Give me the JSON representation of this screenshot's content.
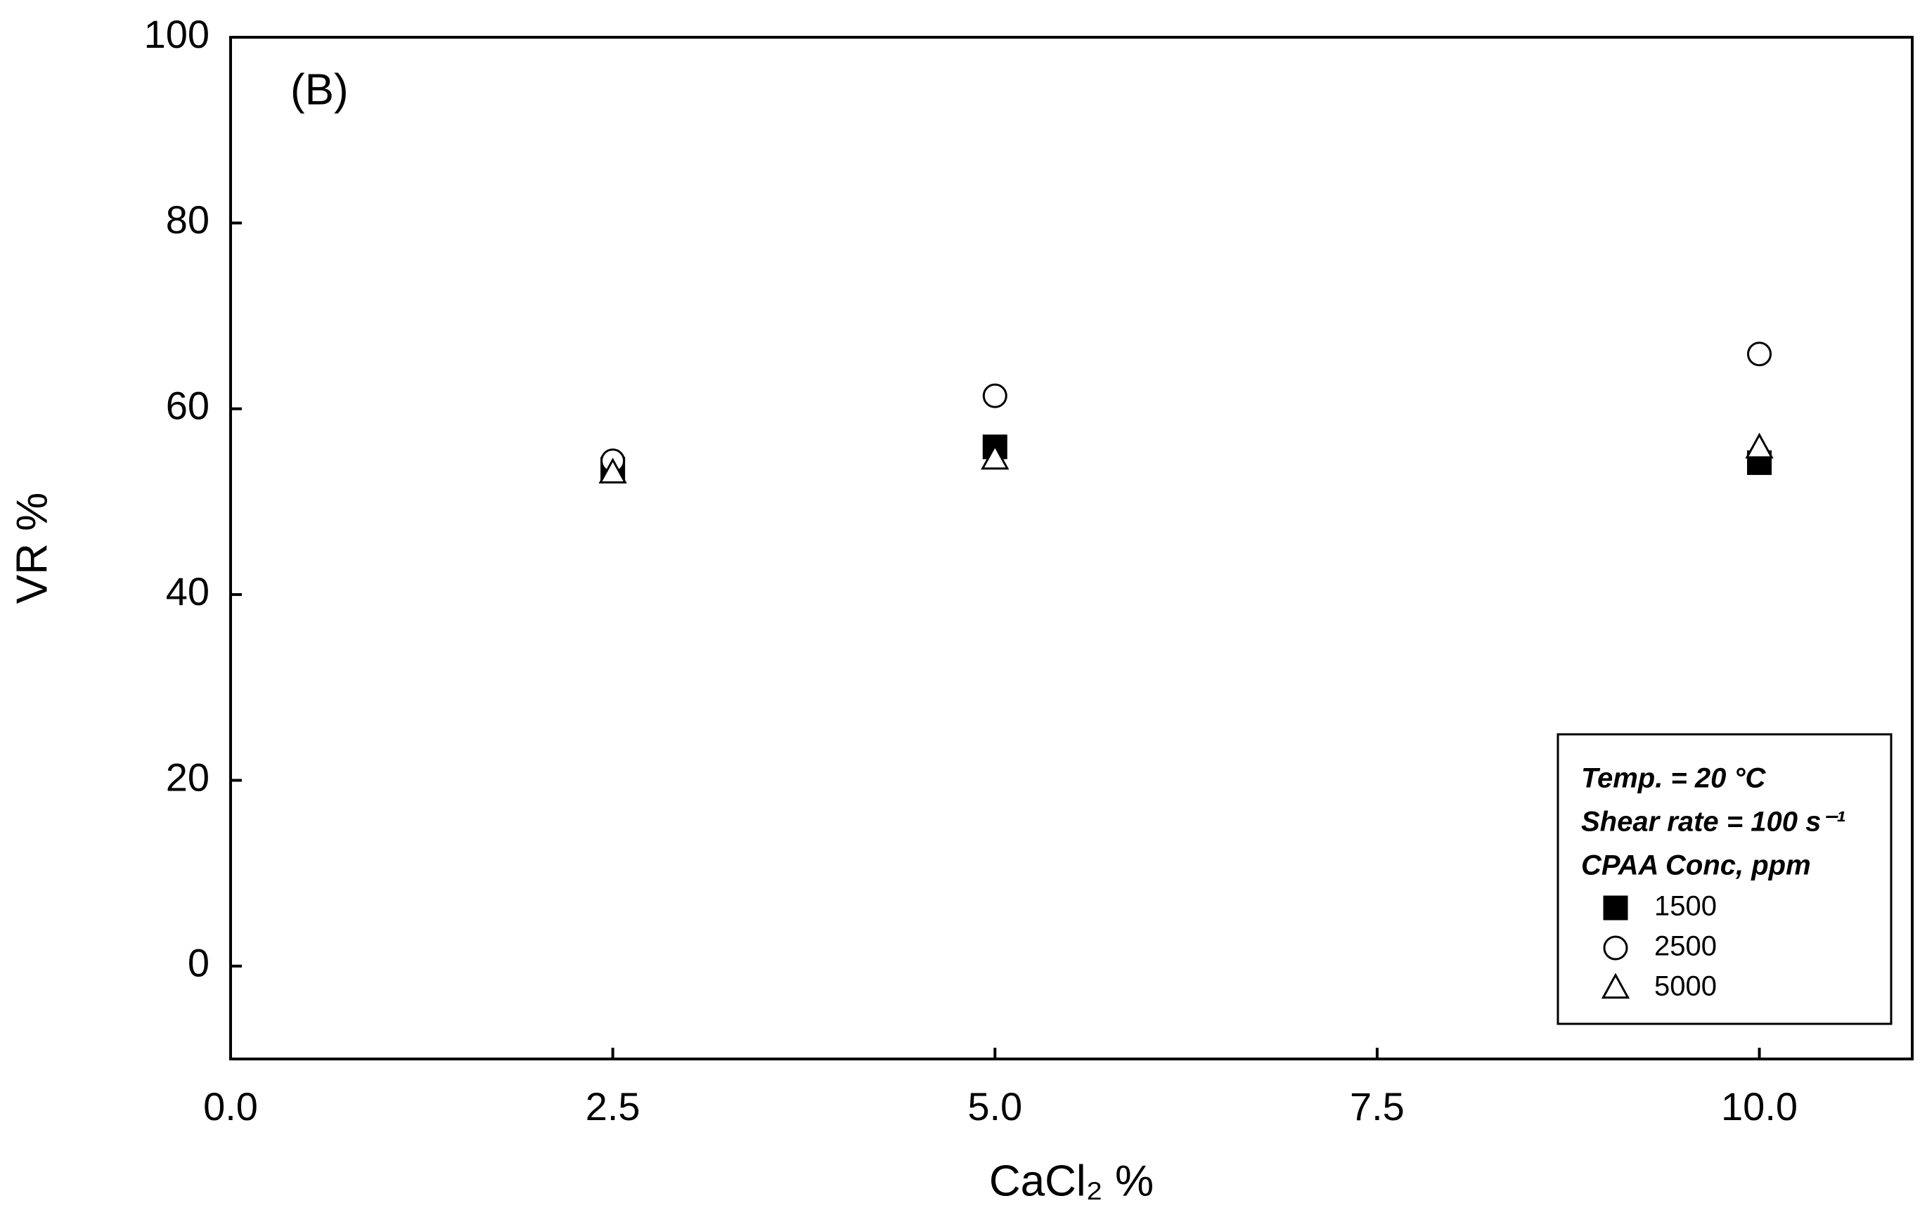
{
  "chart_data": {
    "type": "scatter",
    "panel_label": "(B)",
    "x_label": "CaCl₂ %",
    "y_label": "VR %",
    "x": [
      2.5,
      5,
      10
    ],
    "series": [
      {
        "name": "1500",
        "color": "#000000",
        "marker": "square",
        "filled": true,
        "values": [
          53.5,
          55.9,
          54.2
        ]
      },
      {
        "name": "2500",
        "color": "#000000",
        "marker": "circle",
        "filled": false,
        "values": [
          54.4,
          61.4,
          65.9
        ]
      },
      {
        "name": "5000",
        "color": "#000000",
        "marker": "triangle",
        "filled": false,
        "values": [
          53.1,
          54.6,
          55.8
        ]
      }
    ],
    "legend_lines": [
      "Temp. = 20 °C",
      "Shear rate = 100 s⁻¹",
      "CPAA Conc, ppm"
    ],
    "legend_position": "lower right",
    "xlim": [
      0,
      11
    ],
    "ylim": [
      -10,
      100
    ],
    "xticks": [
      {
        "value": 0,
        "label": "0.0"
      },
      2.5,
      {
        "value": 5,
        "label": "5.0"
      },
      7.5,
      {
        "value": 10,
        "label": "10.0"
      }
    ],
    "yticks": [
      0,
      20,
      40,
      60,
      80,
      100
    ],
    "grid": false
  }
}
